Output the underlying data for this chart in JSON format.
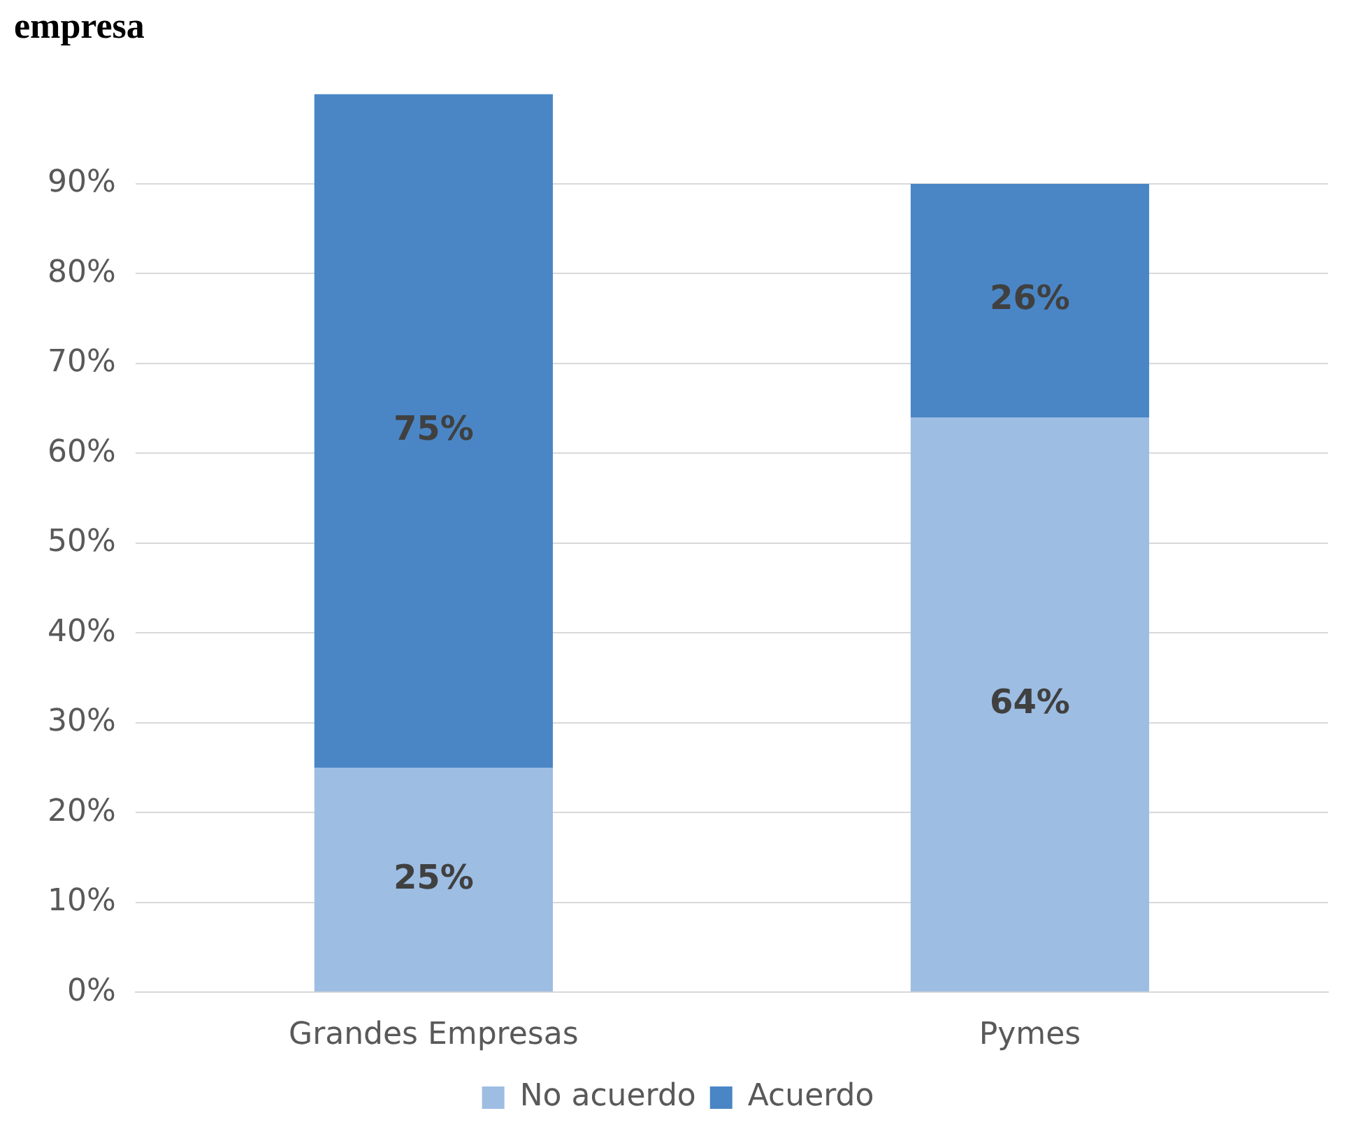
{
  "chart_data": {
    "type": "bar",
    "title": "empresa",
    "categories": [
      "Grandes Empresas",
      "Pymes"
    ],
    "stacked": true,
    "series": [
      {
        "name": "No acuerdo",
        "color": "#9dbde3",
        "values": [
          25,
          64
        ],
        "value_labels": [
          "25%",
          "64%"
        ]
      },
      {
        "name": "Acuerdo",
        "color": "#4a86c5",
        "values": [
          75,
          26
        ],
        "value_labels": [
          "75%",
          "26%"
        ]
      }
    ],
    "ylim": [
      0,
      100
    ],
    "yticks": [
      {
        "value": 0,
        "label": "0%"
      },
      {
        "value": 10,
        "label": "10%"
      },
      {
        "value": 20,
        "label": "20%"
      },
      {
        "value": 30,
        "label": "30%"
      },
      {
        "value": 40,
        "label": "40%"
      },
      {
        "value": 50,
        "label": "50%"
      },
      {
        "value": 60,
        "label": "60%"
      },
      {
        "value": 70,
        "label": "70%"
      },
      {
        "value": 80,
        "label": "80%"
      },
      {
        "value": 90,
        "label": "90%"
      }
    ],
    "grid": "y",
    "legend": "bottom"
  }
}
